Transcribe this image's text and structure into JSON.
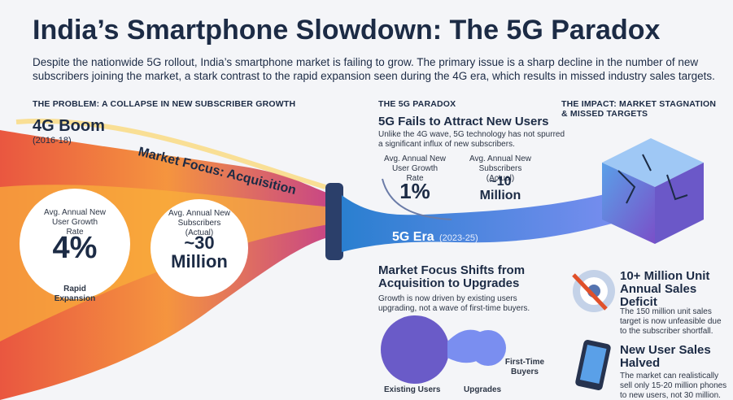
{
  "header": {
    "title": "India’s Smartphone Slowdown: The 5G Paradox",
    "intro": "Despite the nationwide 5G rollout, India’s smartphone market is failing to grow. The primary issue is a sharp decline in the number of new subscribers joining the market, a stark contrast to the rapid expansion seen during the 4G era, which results in missed industry sales targets."
  },
  "problem": {
    "heading": "THE PROBLEM: A COLLAPSE IN NEW SUBSCRIBER GROWTH",
    "era": "4G Boom",
    "years": "(2016-18)",
    "focus": "Market Focus: Acquisition",
    "growth": {
      "label": "Avg. Annual New User Growth Rate",
      "value": "4%",
      "note": "Rapid Expansion"
    },
    "subscribers": {
      "label": "Avg. Annual New Subscribers (Actual)",
      "value": "~30 Million"
    }
  },
  "paradox": {
    "heading": "THE 5G PARADOX",
    "title": "5G Fails to Attract New Users",
    "text": "Unlike the 4G wave, 5G technology has not spurred a significant influx of new subscribers.",
    "growth": {
      "label": "Avg. Annual New User Growth Rate",
      "value": "1%"
    },
    "subscribers": {
      "label": "Avg. Annual New Subscribers (Actual)",
      "value": "~10 Million"
    },
    "era": "5G Era",
    "years": "(2023-25)",
    "shift_title": "Market Focus Shifts from Acquisition to Upgrades",
    "shift_text": "Growth is now driven by existing users upgrading, not a wave of first-time buyers.",
    "labels": [
      "Existing Users",
      "Upgrades",
      "First-Time Buyers"
    ]
  },
  "impact": {
    "heading": "THE IMPACT: MARKET STAGNATION & MISSED TARGETS",
    "items": [
      {
        "title": "10+ Million Unit Annual Sales Deficit",
        "text": "The 150 million unit sales target is now unfeasible due to the subscriber shortfall."
      },
      {
        "title": "New User Sales Halved",
        "text": "The market can realistically sell only 15-20 million phones to new users, not 30 million."
      }
    ]
  }
}
